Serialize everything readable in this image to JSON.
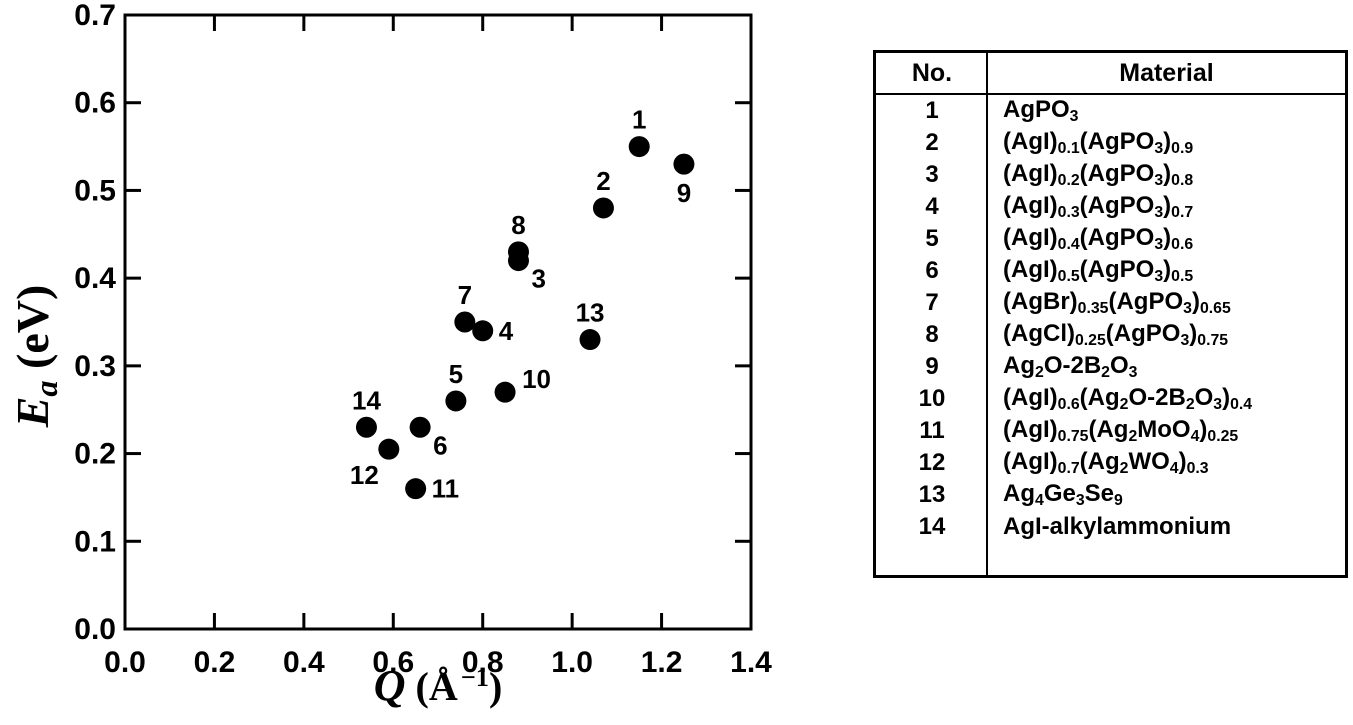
{
  "figure": {
    "background": "#ffffff",
    "ink_color": "#000000"
  },
  "chart_data": {
    "type": "scatter",
    "title": "",
    "xlabel": "*Q* (Å^{−1})",
    "ylabel": "*E*_{a} (eV)",
    "xlim": [
      0.0,
      1.4
    ],
    "ylim": [
      0.0,
      0.7
    ],
    "x_tick_labels": [
      "0.0",
      "0.2",
      "0.4",
      "0.6",
      "0.8",
      "1.0",
      "1.2",
      "1.4"
    ],
    "y_tick_labels": [
      "0.0",
      "0.1",
      "0.2",
      "0.3",
      "0.4",
      "0.5",
      "0.6",
      "0.7"
    ],
    "grid": false,
    "legend": "none",
    "marker": {
      "shape": "circle",
      "fill": "#000000",
      "radius_px": 10.5
    },
    "points": [
      {
        "no": "1",
        "q": 1.15,
        "ea": 0.55,
        "label_pos": "above"
      },
      {
        "no": "2",
        "q": 1.07,
        "ea": 0.48,
        "label_pos": "above"
      },
      {
        "no": "3",
        "q": 0.88,
        "ea": 0.42,
        "label_pos": "below-right"
      },
      {
        "no": "4",
        "q": 0.8,
        "ea": 0.34,
        "label_pos": "right"
      },
      {
        "no": "5",
        "q": 0.74,
        "ea": 0.26,
        "label_pos": "above"
      },
      {
        "no": "6",
        "q": 0.66,
        "ea": 0.23,
        "label_pos": "below-right"
      },
      {
        "no": "7",
        "q": 0.76,
        "ea": 0.35,
        "label_pos": "above"
      },
      {
        "no": "8",
        "q": 0.88,
        "ea": 0.43,
        "label_pos": "above"
      },
      {
        "no": "9",
        "q": 1.25,
        "ea": 0.53,
        "label_pos": "below"
      },
      {
        "no": "10",
        "q": 0.85,
        "ea": 0.27,
        "label_pos": "above-right"
      },
      {
        "no": "11",
        "q": 0.65,
        "ea": 0.16,
        "label_pos": "right"
      },
      {
        "no": "12",
        "q": 0.59,
        "ea": 0.205,
        "label_pos": "below-left"
      },
      {
        "no": "13",
        "q": 1.04,
        "ea": 0.33,
        "label_pos": "above"
      },
      {
        "no": "14",
        "q": 0.54,
        "ea": 0.23,
        "label_pos": "above"
      }
    ]
  },
  "materials_table": {
    "headers": {
      "no": "No.",
      "material": "Material"
    },
    "rows": [
      {
        "no": "1",
        "material": "AgPO_{3}"
      },
      {
        "no": "2",
        "material": "(AgI)_{0.1}(AgPO_{3})_{0.9}"
      },
      {
        "no": "3",
        "material": "(AgI)_{0.2}(AgPO_{3})_{0.8}"
      },
      {
        "no": "4",
        "material": "(AgI)_{0.3}(AgPO_{3})_{0.7}"
      },
      {
        "no": "5",
        "material": "(AgI)_{0.4}(AgPO_{3})_{0.6}"
      },
      {
        "no": "6",
        "material": "(AgI)_{0.5}(AgPO_{3})_{0.5}"
      },
      {
        "no": "7",
        "material": "(AgBr)_{0.35}(AgPO_{3})_{0.65}"
      },
      {
        "no": "8",
        "material": "(AgCl)_{0.25}(AgPO_{3})_{0.75}"
      },
      {
        "no": "9",
        "material": "Ag_{2}O-2B_{2}O_{3}"
      },
      {
        "no": "10",
        "material": "(AgI)_{0.6}(Ag_{2}O-2B_{2}O_{3})_{0.4}"
      },
      {
        "no": "11",
        "material": "(AgI)_{0.75}(Ag_{2}MoO_{4})_{0.25}"
      },
      {
        "no": "12",
        "material": "(AgI)_{0.7}(Ag_{2}WO_{4})_{0.3}"
      },
      {
        "no": "13",
        "material": "Ag_{4}Ge_{3}Se_{9}"
      },
      {
        "no": "14",
        "material": "AgI-alkylammonium"
      }
    ]
  }
}
